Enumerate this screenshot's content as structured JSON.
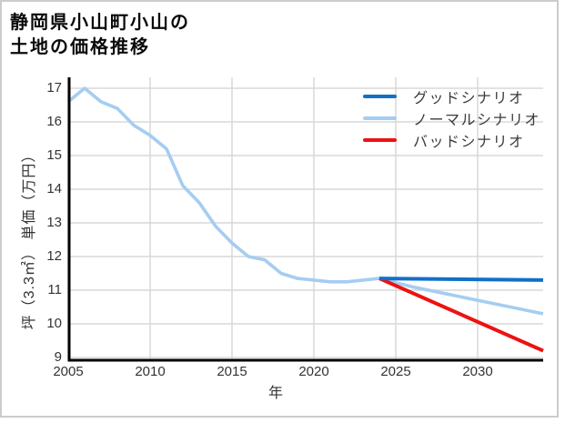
{
  "title": {
    "lines": [
      "静岡県小山町小山の",
      "土地の価格推移"
    ]
  },
  "chart_data": {
    "type": "line",
    "title": "静岡県小山町小山の土地の価格推移",
    "xlabel": "年",
    "ylabel": "坪（3.3㎡） 単価（万円）",
    "x_ticks": [
      2005,
      2010,
      2015,
      2020,
      2025,
      2030
    ],
    "y_ticks": [
      9,
      10,
      11,
      12,
      13,
      14,
      15,
      16,
      17
    ],
    "xlim": [
      2005,
      2034
    ],
    "ylim": [
      9,
      17.3
    ],
    "grid": true,
    "legend_position": "top-right",
    "series": [
      {
        "id": "good",
        "name": "グッドシナリオ",
        "color": "#1170c8",
        "x": [
          2024,
          2034
        ],
        "values": [
          11.35,
          11.3
        ]
      },
      {
        "id": "normal",
        "name": "ノーマルシナリオ",
        "color": "#a5cdf2",
        "x": [
          2005,
          2006,
          2007,
          2008,
          2009,
          2010,
          2011,
          2012,
          2013,
          2014,
          2015,
          2016,
          2017,
          2018,
          2019,
          2020,
          2021,
          2022,
          2023,
          2024,
          2026,
          2028,
          2030,
          2032,
          2034
        ],
        "values": [
          16.6,
          17.0,
          16.6,
          16.4,
          15.9,
          15.6,
          15.2,
          14.1,
          13.6,
          12.9,
          12.4,
          12.0,
          11.9,
          11.5,
          11.35,
          11.3,
          11.25,
          11.25,
          11.3,
          11.35,
          11.1,
          10.9,
          10.7,
          10.5,
          10.3
        ]
      },
      {
        "id": "bad",
        "name": "バッドシナリオ",
        "color": "#ee1111",
        "x": [
          2024,
          2034
        ],
        "values": [
          11.35,
          9.2
        ]
      }
    ]
  },
  "theme": {
    "grid_color": "#d8d8d8",
    "spine_color": "#000000",
    "tick_text_color": "#333333",
    "legend_text_color": "#3b3b3b",
    "frame_border_color": "#cccccc",
    "background": "#ffffff"
  }
}
